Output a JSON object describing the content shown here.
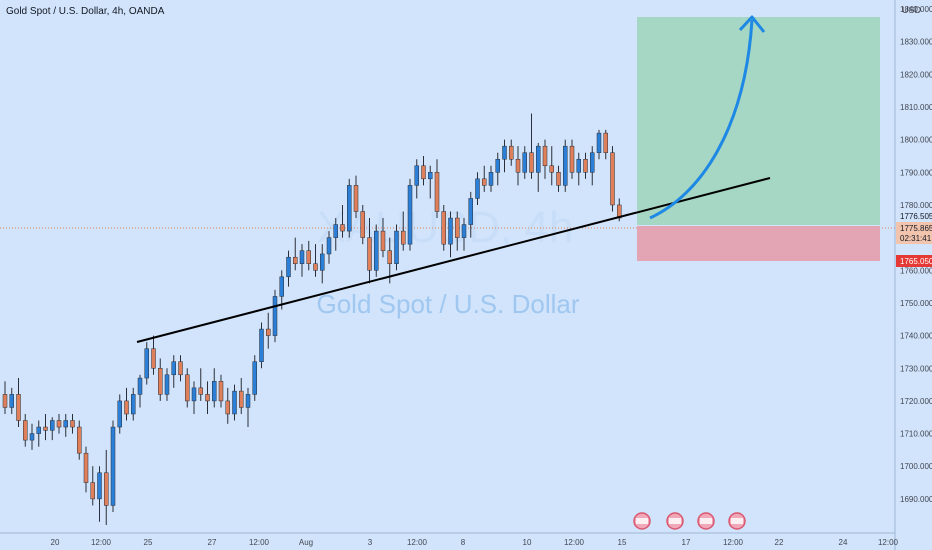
{
  "header": {
    "title": "Gold Spot / U.S. Dollar, 4h, OANDA",
    "currency": "USD"
  },
  "watermark": {
    "symbol": "XAUUSD, 4h",
    "name": "Gold Spot / U.S. Dollar"
  },
  "colors": {
    "background": "#d1e4fb",
    "up": "#2c7fd6",
    "down": "#e0805b",
    "trendline": "#000000",
    "target_zone": "#a6d6c4",
    "stop_zone": "#e3a5b4",
    "arrow": "#1e88e5",
    "axis_text": "#434651"
  },
  "chart_data": {
    "type": "candlestick",
    "title": "Gold Spot / U.S. Dollar, 4h, OANDA",
    "symbol": "XAUUSD",
    "timeframe": "4h",
    "y_range": [
      1680,
      1845
    ],
    "y_ticks": [
      1690,
      1700,
      1710,
      1720,
      1730,
      1740,
      1750,
      1760,
      1770,
      1780,
      1790,
      1800,
      1810,
      1820,
      1830,
      1840
    ],
    "x_tick_labels": [
      "20",
      "12:00",
      "25",
      "27",
      "12:00",
      "Aug",
      "3",
      "12:00",
      "8",
      "10",
      "12:00",
      "15",
      "17",
      "12:00",
      "22",
      "24",
      "12:00"
    ],
    "price_labels": [
      {
        "value": 1776.505,
        "text": "1776.505",
        "kind": "target-top"
      },
      {
        "value": 1775.865,
        "text": "1775.865",
        "kind": "last-price"
      },
      {
        "value": 1765.05,
        "text": "1765.050",
        "kind": "stop"
      }
    ],
    "countdown": "02:31:41",
    "candles": [
      [
        1722,
        1726,
        1716,
        1718
      ],
      [
        1718,
        1724,
        1716,
        1722
      ],
      [
        1722,
        1727,
        1712,
        1714
      ],
      [
        1714,
        1716,
        1706,
        1708
      ],
      [
        1708,
        1713,
        1705,
        1710
      ],
      [
        1710,
        1714,
        1706,
        1712
      ],
      [
        1712,
        1716,
        1708,
        1711
      ],
      [
        1711,
        1715,
        1708,
        1714
      ],
      [
        1714,
        1716,
        1710,
        1712
      ],
      [
        1712,
        1716,
        1709,
        1714
      ],
      [
        1714,
        1716,
        1710,
        1712
      ],
      [
        1712,
        1714,
        1702,
        1704
      ],
      [
        1704,
        1706,
        1692,
        1695
      ],
      [
        1695,
        1700,
        1688,
        1690
      ],
      [
        1690,
        1700,
        1683,
        1698
      ],
      [
        1698,
        1705,
        1682,
        1688
      ],
      [
        1688,
        1714,
        1686,
        1712
      ],
      [
        1712,
        1722,
        1710,
        1720
      ],
      [
        1720,
        1724,
        1714,
        1716
      ],
      [
        1716,
        1724,
        1714,
        1722
      ],
      [
        1722,
        1728,
        1718,
        1727
      ],
      [
        1727,
        1738,
        1725,
        1736
      ],
      [
        1736,
        1740,
        1728,
        1730
      ],
      [
        1730,
        1733,
        1720,
        1722
      ],
      [
        1722,
        1730,
        1720,
        1728
      ],
      [
        1728,
        1734,
        1724,
        1732
      ],
      [
        1732,
        1734,
        1726,
        1728
      ],
      [
        1728,
        1730,
        1718,
        1720
      ],
      [
        1720,
        1726,
        1716,
        1724
      ],
      [
        1724,
        1730,
        1720,
        1722
      ],
      [
        1722,
        1726,
        1716,
        1720
      ],
      [
        1720,
        1730,
        1718,
        1726
      ],
      [
        1726,
        1728,
        1718,
        1720
      ],
      [
        1720,
        1724,
        1713,
        1716
      ],
      [
        1716,
        1725,
        1714,
        1723
      ],
      [
        1723,
        1727,
        1716,
        1718
      ],
      [
        1718,
        1724,
        1712,
        1722
      ],
      [
        1722,
        1734,
        1720,
        1732
      ],
      [
        1732,
        1744,
        1730,
        1742
      ],
      [
        1742,
        1747,
        1736,
        1740
      ],
      [
        1740,
        1754,
        1738,
        1752
      ],
      [
        1752,
        1760,
        1748,
        1758
      ],
      [
        1758,
        1766,
        1755,
        1764
      ],
      [
        1764,
        1770,
        1760,
        1762
      ],
      [
        1762,
        1768,
        1758,
        1766
      ],
      [
        1766,
        1769,
        1760,
        1762
      ],
      [
        1762,
        1768,
        1758,
        1760
      ],
      [
        1760,
        1768,
        1756,
        1765
      ],
      [
        1765,
        1772,
        1762,
        1770
      ],
      [
        1770,
        1776,
        1766,
        1774
      ],
      [
        1774,
        1780,
        1770,
        1772
      ],
      [
        1772,
        1788,
        1770,
        1786
      ],
      [
        1786,
        1789,
        1776,
        1778
      ],
      [
        1778,
        1780,
        1768,
        1770
      ],
      [
        1770,
        1776,
        1756,
        1760
      ],
      [
        1760,
        1774,
        1758,
        1772
      ],
      [
        1772,
        1776,
        1764,
        1766
      ],
      [
        1766,
        1770,
        1756,
        1762
      ],
      [
        1762,
        1774,
        1760,
        1772
      ],
      [
        1772,
        1778,
        1766,
        1768
      ],
      [
        1768,
        1788,
        1766,
        1786
      ],
      [
        1786,
        1794,
        1782,
        1792
      ],
      [
        1792,
        1795,
        1786,
        1788
      ],
      [
        1788,
        1792,
        1782,
        1790
      ],
      [
        1790,
        1794,
        1776,
        1778
      ],
      [
        1778,
        1780,
        1766,
        1768
      ],
      [
        1768,
        1778,
        1764,
        1776
      ],
      [
        1776,
        1778,
        1766,
        1770
      ],
      [
        1770,
        1776,
        1766,
        1774
      ],
      [
        1774,
        1784,
        1770,
        1782
      ],
      [
        1782,
        1790,
        1780,
        1788
      ],
      [
        1788,
        1792,
        1784,
        1786
      ],
      [
        1786,
        1792,
        1784,
        1790
      ],
      [
        1790,
        1796,
        1786,
        1794
      ],
      [
        1794,
        1800,
        1790,
        1798
      ],
      [
        1798,
        1800,
        1792,
        1794
      ],
      [
        1794,
        1798,
        1786,
        1790
      ],
      [
        1790,
        1798,
        1788,
        1796
      ],
      [
        1796,
        1808,
        1788,
        1790
      ],
      [
        1790,
        1799,
        1784,
        1798
      ],
      [
        1798,
        1800,
        1788,
        1792
      ],
      [
        1792,
        1798,
        1786,
        1790
      ],
      [
        1790,
        1792,
        1784,
        1786
      ],
      [
        1786,
        1800,
        1784,
        1798
      ],
      [
        1798,
        1800,
        1788,
        1790
      ],
      [
        1790,
        1796,
        1786,
        1794
      ],
      [
        1794,
        1796,
        1788,
        1790
      ],
      [
        1790,
        1798,
        1786,
        1796
      ],
      [
        1796,
        1803,
        1794,
        1802
      ],
      [
        1802,
        1803,
        1794,
        1796
      ],
      [
        1796,
        1798,
        1778,
        1780
      ],
      [
        1780,
        1782,
        1775,
        1776
      ]
    ],
    "trendline": {
      "from": {
        "candle": 22,
        "value": 1740
      },
      "to": {
        "candle": 131,
        "value": 1791
      }
    },
    "position_tool": {
      "entry": 1776.505,
      "stop": 1765.05,
      "target": 1841,
      "from_candle": 92,
      "to_candle": 128
    },
    "projection_arrow": {
      "start_value": 1776.5,
      "end_value": 1841
    },
    "event_markers": 4
  }
}
